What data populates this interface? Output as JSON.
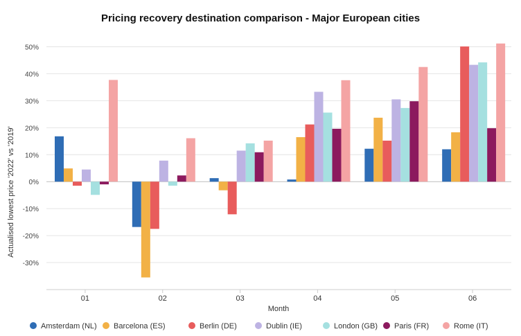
{
  "chart_data": {
    "type": "bar",
    "title": "Pricing recovery destination comparison - Major European cities",
    "xlabel": "Month",
    "ylabel": "Actualised lowest price '2022' vs '2019'",
    "categories": [
      "01",
      "02",
      "03",
      "04",
      "05",
      "06"
    ],
    "yticks": [
      "-30%",
      "-20%",
      "-10%",
      "0%",
      "10%",
      "20%",
      "30%",
      "40%",
      "50%"
    ],
    "ylim": [
      -40,
      55
    ],
    "grid": true,
    "legend": "bottom",
    "series": [
      {
        "name": "Amsterdam (NL)",
        "color": "#2f6db5",
        "values": [
          16.8,
          -16.8,
          1.3,
          0.8,
          12.2,
          12.0
        ]
      },
      {
        "name": "Barcelona (ES)",
        "color": "#f2b146",
        "values": [
          4.9,
          -35.5,
          -3.2,
          16.5,
          23.7,
          18.3
        ]
      },
      {
        "name": "Berlin (DE)",
        "color": "#e85c5c",
        "values": [
          -1.5,
          -17.5,
          -12.1,
          21.2,
          15.2,
          50.1
        ]
      },
      {
        "name": "Dublin (IE)",
        "color": "#bdb3e3",
        "values": [
          4.5,
          7.8,
          11.5,
          33.3,
          30.5,
          43.3
        ]
      },
      {
        "name": "London (GB)",
        "color": "#a5e0e0",
        "values": [
          -4.9,
          -1.5,
          14.2,
          25.6,
          27.3,
          44.2
        ]
      },
      {
        "name": "Paris (FR)",
        "color": "#8c1a5e",
        "values": [
          -1.0,
          2.3,
          10.9,
          19.6,
          29.8,
          19.8
        ]
      },
      {
        "name": "Rome (IT)",
        "color": "#f4a4a4",
        "values": [
          37.7,
          16.1,
          15.2,
          37.6,
          42.5,
          51.2
        ]
      }
    ]
  }
}
